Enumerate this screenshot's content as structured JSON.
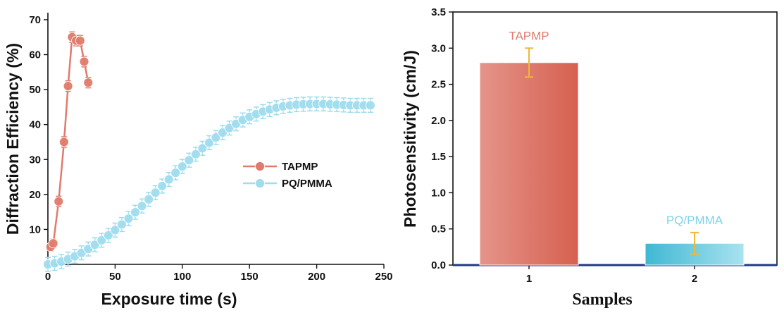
{
  "chart_data": [
    {
      "type": "line",
      "xlabel": "Exposure time (s)",
      "ylabel": "Diffraction Efficiency (%)",
      "xlim": [
        0,
        250
      ],
      "ylim": [
        0,
        72
      ],
      "xticks": [
        0,
        50,
        100,
        150,
        200,
        250
      ],
      "yticks": [
        10,
        20,
        30,
        40,
        50,
        60,
        70
      ],
      "legend_position": "center-right",
      "series": [
        {
          "name": "TAPMP",
          "color": "#e07b6c",
          "x": [
            2,
            4,
            8,
            12,
            15,
            18,
            21,
            24,
            27,
            30
          ],
          "y": [
            5,
            6,
            18,
            35,
            51,
            65,
            64,
            64,
            58,
            52
          ],
          "err": [
            1.2,
            1.2,
            1.5,
            1.5,
            1.5,
            1.5,
            1.5,
            1.5,
            1.5,
            1.5
          ]
        },
        {
          "name": "PQ/PMMA",
          "color": "#9fdcee",
          "x": [
            0,
            5,
            10,
            15,
            20,
            25,
            30,
            35,
            40,
            45,
            50,
            55,
            60,
            65,
            70,
            75,
            80,
            85,
            90,
            95,
            100,
            105,
            110,
            115,
            120,
            125,
            130,
            135,
            140,
            145,
            150,
            155,
            160,
            165,
            170,
            175,
            180,
            185,
            190,
            195,
            200,
            205,
            210,
            215,
            220,
            225,
            230,
            235,
            240
          ],
          "y": [
            0,
            0.3,
            0.8,
            1.5,
            2.3,
            3.3,
            4.4,
            5.6,
            6.9,
            8.3,
            9.8,
            11.4,
            13.1,
            14.9,
            16.7,
            18.6,
            20.5,
            22.4,
            24.3,
            26.2,
            28.0,
            29.8,
            31.5,
            33.2,
            34.8,
            36.3,
            37.7,
            39.0,
            40.2,
            41.3,
            42.2,
            43.0,
            43.7,
            44.3,
            44.8,
            45.2,
            45.5,
            45.7,
            45.8,
            45.9,
            45.9,
            45.9,
            45.8,
            45.7,
            45.6,
            45.5,
            45.5,
            45.5,
            45.5
          ],
          "err": 2
        }
      ]
    },
    {
      "type": "bar",
      "xlabel": "Samples",
      "ylabel": "Photosensitivity (cm/J)",
      "categories": [
        "1",
        "2"
      ],
      "ylim": [
        0,
        3.5
      ],
      "yticks": [
        "0.0",
        "0.5",
        "1.0",
        "1.5",
        "2.0",
        "2.5",
        "3.0",
        "3.5"
      ],
      "bar_labels": [
        "TAPMP",
        "PQ/PMMA"
      ],
      "values": [
        2.8,
        0.3
      ],
      "errors": [
        0.2,
        0.15
      ],
      "colors": [
        "#d9685a",
        "#4cc0d8"
      ]
    }
  ]
}
